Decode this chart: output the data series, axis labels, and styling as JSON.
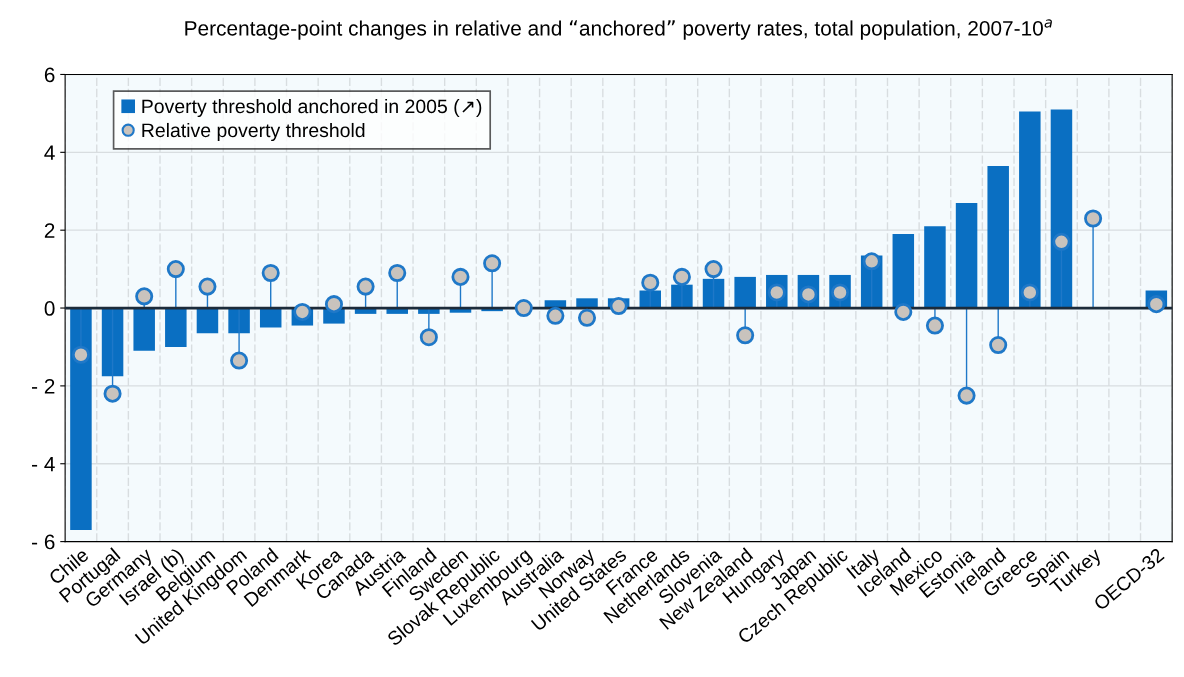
{
  "chart_data": {
    "type": "bar",
    "title": "Percentage-point changes in relative and “anchored” poverty rates, total population, 2007-10$^{a}$",
    "categories": [
      "Chile",
      "Portugal",
      "Germany",
      "Israel (b)",
      "Belgium",
      "United Kingdom",
      "Poland",
      "Denmark",
      "Korea",
      "Canada",
      "Austria",
      "Finland",
      "Sweden",
      "Slovak Republic",
      "Luxembourg",
      "Australia",
      "Norway",
      "United States",
      "France",
      "Netherlands",
      "Slovenia",
      "New Zealand",
      "Hungary",
      "Japan",
      "Czech Republic",
      "Italy",
      "Iceland",
      "Mexico",
      "Estonia",
      "Ireland",
      "Greece",
      "Spain",
      "Turkey",
      null,
      "OECD-32"
    ],
    "series": [
      {
        "name": "Poverty threshold anchored in 2005 (↗)",
        "color": "#0a6fc2",
        "values": [
          -5.7,
          -1.75,
          -1.1,
          -1.0,
          -0.65,
          -0.65,
          -0.5,
          -0.45,
          -0.4,
          -0.15,
          -0.15,
          -0.15,
          -0.12,
          -0.08,
          0.0,
          0.2,
          0.25,
          0.25,
          0.45,
          0.6,
          0.75,
          0.8,
          0.85,
          0.85,
          0.85,
          1.35,
          1.9,
          2.1,
          2.7,
          3.65,
          5.05,
          5.1,
          null,
          null,
          0.45
        ]
      },
      {
        "name": "Relative poverty threshold",
        "type": "lollipop",
        "color": "#c9c3bd",
        "values": [
          -1.2,
          -2.2,
          0.3,
          1.0,
          0.55,
          -1.35,
          0.9,
          -0.1,
          0.1,
          0.55,
          0.9,
          -0.75,
          0.8,
          1.15,
          0.0,
          -0.2,
          -0.25,
          0.05,
          0.65,
          0.8,
          1.0,
          -0.7,
          0.4,
          0.35,
          0.4,
          1.2,
          -0.1,
          -0.45,
          -2.25,
          -0.95,
          0.4,
          1.7,
          2.3,
          null,
          0.1
        ]
      }
    ],
    "ylim": [
      -6,
      6
    ],
    "yticks": [
      {
        "value": -6,
        "label": "- 6"
      },
      {
        "value": -4,
        "label": "- 4"
      },
      {
        "value": -2,
        "label": "- 2"
      },
      0,
      2,
      4,
      6
    ],
    "ref_lines": [
      {
        "axis": "y",
        "value": 0,
        "color": "#1c2b3a"
      }
    ],
    "grid": true,
    "legend": "top left",
    "marker": "circle"
  }
}
